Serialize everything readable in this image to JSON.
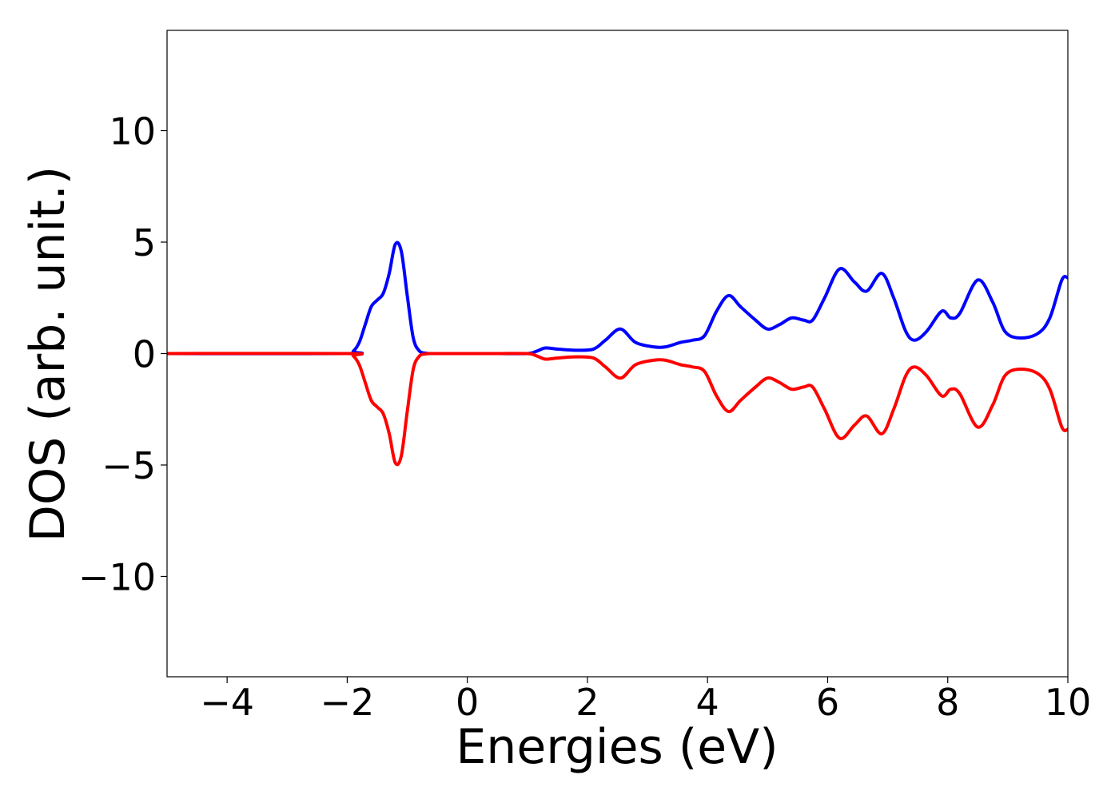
{
  "chart_data": {
    "type": "line",
    "title": "",
    "xlabel": "Energies (eV)",
    "ylabel": "DOS (arb. unit.)",
    "xlim": [
      -5,
      10
    ],
    "ylim": [
      -14.5,
      14.5
    ],
    "xticks": [
      -4,
      -2,
      0,
      2,
      4,
      6,
      8,
      10
    ],
    "xtick_labels": [
      "−4",
      "−2",
      "0",
      "2",
      "4",
      "6",
      "8",
      "10"
    ],
    "yticks": [
      -10,
      -5,
      0,
      5,
      10
    ],
    "ytick_labels": [
      "−10",
      "−5",
      "0",
      "5",
      "10"
    ],
    "grid": false,
    "legend": "none",
    "x": [
      -5.0,
      -2.0,
      -1.9,
      -1.8,
      -1.7,
      -1.6,
      -1.5,
      -1.4,
      -1.3,
      -1.2,
      -1.1,
      -1.0,
      -0.9,
      -0.8,
      -0.7,
      -0.6,
      -0.5,
      0.0,
      0.5,
      1.0,
      1.15,
      1.3,
      1.5,
      1.8,
      2.1,
      2.3,
      2.55,
      2.8,
      3.1,
      3.3,
      3.55,
      3.75,
      3.95,
      4.15,
      4.35,
      4.55,
      4.8,
      5.0,
      5.2,
      5.4,
      5.6,
      5.75,
      5.95,
      6.2,
      6.45,
      6.65,
      6.9,
      7.1,
      7.3,
      7.45,
      7.65,
      7.9,
      8.05,
      8.2,
      8.5,
      8.75,
      8.95,
      9.2,
      9.5,
      9.7,
      9.9,
      10.0
    ],
    "series": [
      {
        "color": "#0000ff",
        "values": [
          0.0,
          0.0,
          0.1,
          0.5,
          1.3,
          2.1,
          2.4,
          2.7,
          3.6,
          4.9,
          4.6,
          2.6,
          0.7,
          0.12,
          0.02,
          0.0,
          0.0,
          0.0,
          0.0,
          0.0,
          0.1,
          0.25,
          0.2,
          0.15,
          0.2,
          0.6,
          1.1,
          0.5,
          0.3,
          0.3,
          0.5,
          0.6,
          0.8,
          1.9,
          2.6,
          2.1,
          1.5,
          1.1,
          1.3,
          1.6,
          1.5,
          1.5,
          2.5,
          3.8,
          3.2,
          2.8,
          3.6,
          2.5,
          1.0,
          0.6,
          1.0,
          1.9,
          1.6,
          1.8,
          3.3,
          2.3,
          1.0,
          0.7,
          0.9,
          1.6,
          3.3,
          3.4
        ]
      },
      {
        "color": "#ff0000",
        "values": [
          0.0,
          0.0,
          -0.1,
          -0.5,
          -1.3,
          -2.1,
          -2.4,
          -2.7,
          -3.6,
          -4.9,
          -4.6,
          -2.6,
          -0.7,
          -0.12,
          -0.02,
          0.0,
          0.0,
          0.0,
          0.0,
          0.0,
          -0.1,
          -0.25,
          -0.2,
          -0.15,
          -0.2,
          -0.6,
          -1.1,
          -0.5,
          -0.3,
          -0.3,
          -0.5,
          -0.6,
          -0.8,
          -1.9,
          -2.6,
          -2.1,
          -1.5,
          -1.1,
          -1.3,
          -1.6,
          -1.5,
          -1.5,
          -2.5,
          -3.8,
          -3.2,
          -2.8,
          -3.6,
          -2.5,
          -1.0,
          -0.6,
          -1.0,
          -1.9,
          -1.6,
          -1.8,
          -3.3,
          -2.3,
          -1.0,
          -0.7,
          -0.9,
          -1.6,
          -3.3,
          -3.4
        ]
      }
    ]
  }
}
